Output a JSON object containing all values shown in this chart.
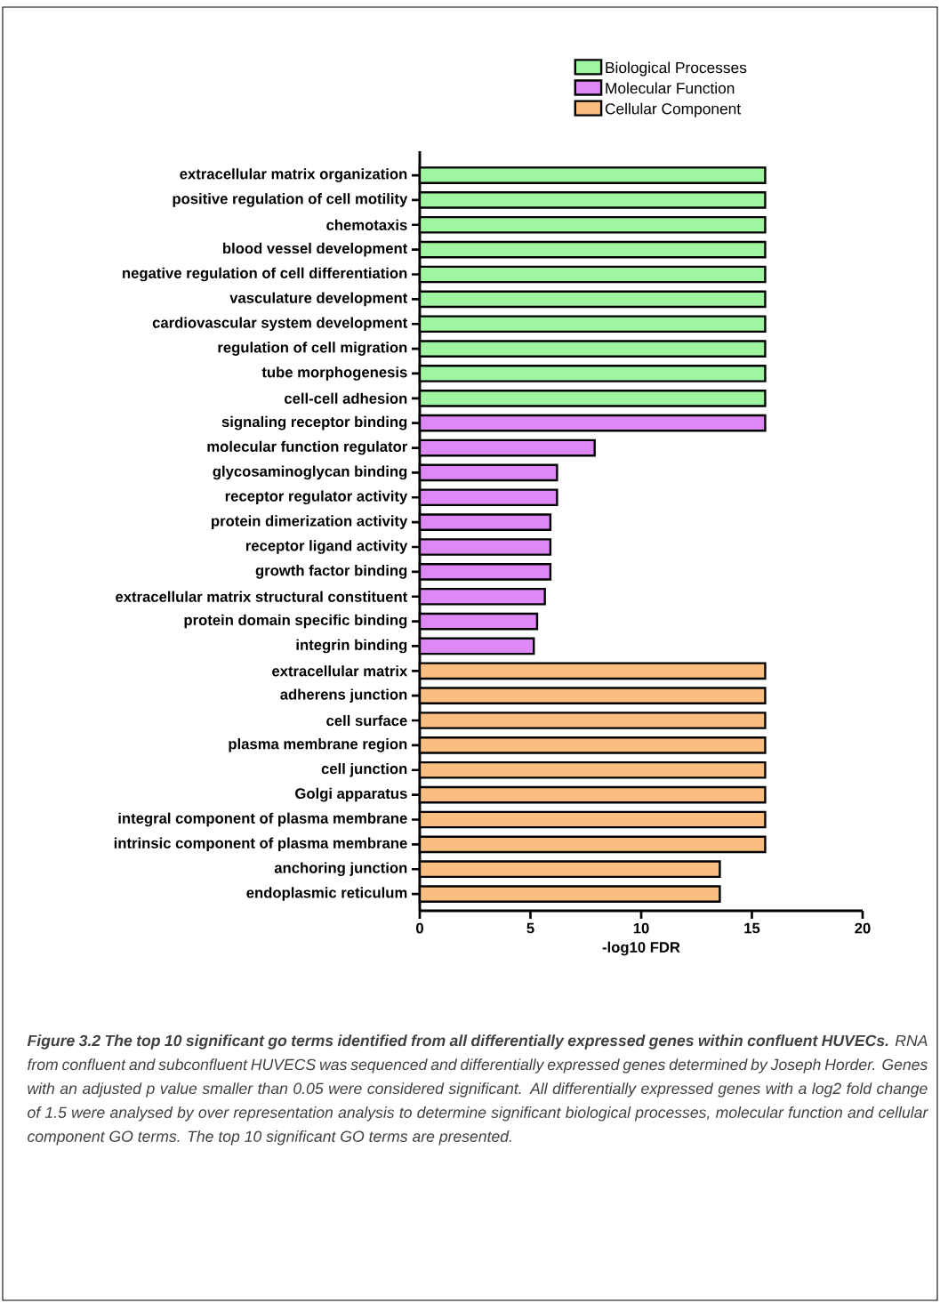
{
  "chart_data": {
    "type": "bar",
    "orientation": "horizontal",
    "legend": "top right",
    "xlabel": "-log10 FDR",
    "xlim": [
      0,
      20
    ],
    "xticks": [
      0,
      5,
      10,
      15,
      20
    ],
    "categories": [
      "extracellular matrix organization",
      "positive regulation of cell motility",
      "chemotaxis",
      "blood vessel development",
      "negative regulation of cell differentiation",
      "vasculature development",
      "cardiovascular system development",
      "regulation of cell migration",
      "tube morphogenesis",
      "cell-cell adhesion",
      "signaling receptor binding",
      "molecular function regulator",
      "glycosaminoglycan binding",
      "receptor regulator activity",
      "protein dimerization activity",
      "receptor ligand activity",
      "growth factor binding",
      "extracellular matrix structural constituent",
      "protein domain specific binding",
      "integrin binding",
      "extracellular matrix",
      "adherens junction",
      "cell surface",
      "plasma membrane region",
      "cell junction",
      "Golgi apparatus",
      "integral component of plasma membrane",
      "intrinsic component of plasma membrane",
      "anchoring junction",
      "endoplasmic reticulum"
    ],
    "series": [
      {
        "name": "Biological Processes",
        "color": "#a0f5a0",
        "values": [
          15.6,
          15.6,
          15.6,
          15.6,
          15.6,
          15.6,
          15.6,
          15.6,
          15.6,
          15.6,
          null,
          null,
          null,
          null,
          null,
          null,
          null,
          null,
          null,
          null,
          null,
          null,
          null,
          null,
          null,
          null,
          null,
          null,
          null,
          null
        ]
      },
      {
        "name": "Molecular Function",
        "color": "#dd88f5",
        "values": [
          null,
          null,
          null,
          null,
          null,
          null,
          null,
          null,
          null,
          null,
          15.6,
          7.9,
          6.2,
          6.2,
          5.9,
          5.9,
          5.9,
          5.65,
          5.3,
          5.15,
          null,
          null,
          null,
          null,
          null,
          null,
          null,
          null,
          null,
          null
        ]
      },
      {
        "name": "Cellular Component",
        "color": "#f9be80",
        "values": [
          null,
          null,
          null,
          null,
          null,
          null,
          null,
          null,
          null,
          null,
          null,
          null,
          null,
          null,
          null,
          null,
          null,
          null,
          null,
          null,
          15.6,
          15.6,
          15.6,
          15.6,
          15.6,
          15.6,
          15.6,
          15.6,
          13.55,
          13.55
        ]
      }
    ],
    "annotations": [
      "**Figure 3.2 The top 10 significant go terms identified from all differentially expressed genes within confluent HUVECs.** RNA from confluent and subconfluent HUVECS was sequenced and differentially expressed genes determined by Joseph Horder. Genes with an adjusted p value smaller than 0.05 were considered significant. All differentially expressed genes with a log2 fold change of 1.5 were analysed by over representation analysis to determine significant biological processes, molecular function and cellular component GO terms. The top 10 significant GO terms are presented."
    ]
  }
}
